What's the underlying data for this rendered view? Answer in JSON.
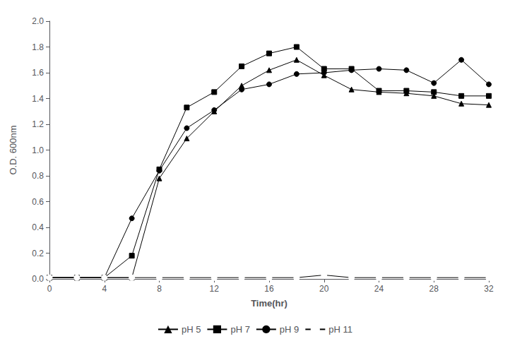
{
  "chart_data": {
    "type": "line",
    "xlabel": "Time(hr)",
    "ylabel": "O.D. 600nm",
    "x": [
      0,
      2,
      4,
      6,
      8,
      10,
      12,
      14,
      16,
      18,
      20,
      22,
      24,
      26,
      28,
      30,
      32
    ],
    "series": [
      {
        "name": "pH 5",
        "color": "#000000",
        "marker": "triangle",
        "values": [
          0.01,
          0.01,
          0.01,
          0.01,
          0.78,
          1.09,
          1.3,
          1.5,
          1.62,
          1.7,
          1.58,
          1.47,
          1.45,
          1.44,
          1.42,
          1.36,
          1.35
        ]
      },
      {
        "name": "pH 7",
        "color": "#000000",
        "marker": "square",
        "values": [
          0.01,
          0.01,
          0.01,
          0.18,
          0.85,
          1.33,
          1.45,
          1.65,
          1.75,
          1.8,
          1.63,
          1.63,
          1.46,
          1.46,
          1.45,
          1.42,
          1.42
        ]
      },
      {
        "name": "pH 9",
        "color": "#000000",
        "marker": "circle",
        "values": [
          0.01,
          0.01,
          0.01,
          0.47,
          0.84,
          1.17,
          1.31,
          1.47,
          1.51,
          1.59,
          1.6,
          1.62,
          1.63,
          1.62,
          1.52,
          1.7,
          1.51
        ]
      },
      {
        "name": "pH 11",
        "color": "#000000",
        "marker": "open_circle",
        "values": [
          0.01,
          0.01,
          0.01,
          0.01,
          0.01,
          0.01,
          0.01,
          0.01,
          0.01,
          0.01,
          0.03,
          0.01,
          0.01,
          0.01,
          0.01,
          0.01,
          0.01
        ]
      }
    ],
    "xlim": [
      0,
      32
    ],
    "xticks": [
      0,
      4,
      8,
      12,
      16,
      20,
      24,
      28,
      32
    ],
    "ylim": [
      0,
      2.0
    ],
    "yticks": [
      {
        "value": 0.0,
        "label": "0.0"
      },
      0.2,
      0.4,
      0.6,
      0.8,
      {
        "value": 1.0,
        "label": "1.0"
      },
      1.2,
      1.4,
      1.6,
      1.8,
      {
        "value": 2.0,
        "label": "2.0"
      }
    ],
    "grid": false,
    "legend": "bottom"
  }
}
